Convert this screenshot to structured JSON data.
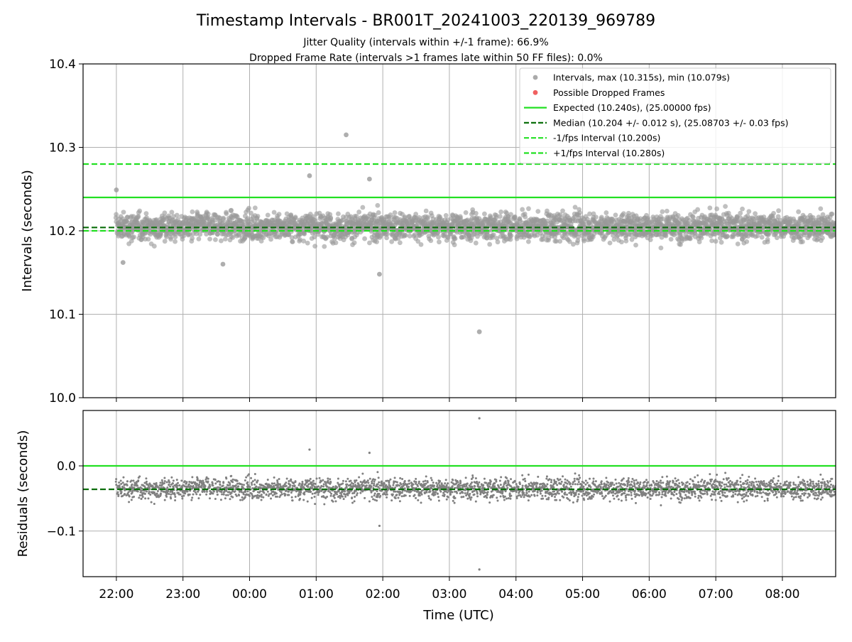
{
  "chart_data": {
    "type": "scatter",
    "title": "Timestamp Intervals - BR001T_20241003_220139_969789",
    "subtitles": [
      "Jitter Quality (intervals within +/-1 frame): 66.9%",
      "Dropped Frame Rate (intervals >1 frames late within 50 FF files): 0.0%"
    ],
    "xlabel": "Time (UTC)",
    "x_range_hours": [
      -0.5,
      10.8
    ],
    "x_ticks": [
      {
        "label": "22:00",
        "value": 0
      },
      {
        "label": "23:00",
        "value": 1
      },
      {
        "label": "00:00",
        "value": 2
      },
      {
        "label": "01:00",
        "value": 3
      },
      {
        "label": "02:00",
        "value": 4
      },
      {
        "label": "03:00",
        "value": 5
      },
      {
        "label": "04:00",
        "value": 6
      },
      {
        "label": "05:00",
        "value": 7
      },
      {
        "label": "06:00",
        "value": 8
      },
      {
        "label": "07:00",
        "value": 9
      },
      {
        "label": "08:00",
        "value": 10
      }
    ],
    "grid": true,
    "legend_position": "top-right",
    "top_panel": {
      "ylabel": "Intervals (seconds)",
      "ylim": [
        10.0,
        10.4
      ],
      "y_ticks": [
        "10.0",
        "10.1",
        "10.2",
        "10.3",
        "10.4"
      ],
      "legend": [
        {
          "label": "Intervals, max (10.315s), min (10.079s)",
          "kind": "marker",
          "color": "#aaaaaa"
        },
        {
          "label": "Possible Dropped Frames",
          "kind": "marker",
          "color": "#f06060"
        },
        {
          "label": "Expected (10.240s), (25.00000 fps)",
          "kind": "solid",
          "color": "#22e022"
        },
        {
          "label": "Median (10.204 +/- 0.012 s), (25.08703 +/- 0.03 fps)",
          "kind": "dashed",
          "color": "#0a6e0a"
        },
        {
          "label": "-1/fps Interval (10.200s)",
          "kind": "dashed",
          "color": "#22e022"
        },
        {
          "label": "+1/fps Interval (10.280s)",
          "kind": "dashed",
          "color": "#22e022"
        }
      ],
      "lines": {
        "expected": 10.24,
        "median": 10.204,
        "minus_fps": 10.2,
        "plus_fps": 10.28
      },
      "series": {
        "typical_mean": 10.205,
        "typical_spread": 0.013,
        "x_start": 0.0,
        "x_end": 10.8,
        "max": 10.315,
        "min": 10.079
      },
      "outliers": [
        {
          "x": 3.45,
          "y": 10.315
        },
        {
          "x": 5.45,
          "y": 10.079
        },
        {
          "x": 2.9,
          "y": 10.266
        },
        {
          "x": 3.95,
          "y": 10.148
        },
        {
          "x": 3.8,
          "y": 10.262
        },
        {
          "x": 1.6,
          "y": 10.16
        },
        {
          "x": 0.0,
          "y": 10.249
        },
        {
          "x": 0.1,
          "y": 10.162
        }
      ]
    },
    "bottom_panel": {
      "ylabel": "Residuals (seconds)",
      "ylim": [
        -0.17,
        0.085
      ],
      "y_ticks": [
        {
          "label": "0.0",
          "value": 0.0
        },
        {
          "label": "−0.1",
          "value": -0.1
        }
      ],
      "lines": {
        "zero": 0.0,
        "median": -0.036
      },
      "outliers": [
        {
          "x": 5.45,
          "y": 0.073
        },
        {
          "x": 5.45,
          "y": -0.159
        },
        {
          "x": 3.95,
          "y": -0.092
        },
        {
          "x": 2.9,
          "y": 0.025
        },
        {
          "x": 3.8,
          "y": 0.02
        }
      ]
    },
    "colors": {
      "points": "#808080",
      "expected": "#22e022",
      "median": "#0a6e0a"
    }
  }
}
